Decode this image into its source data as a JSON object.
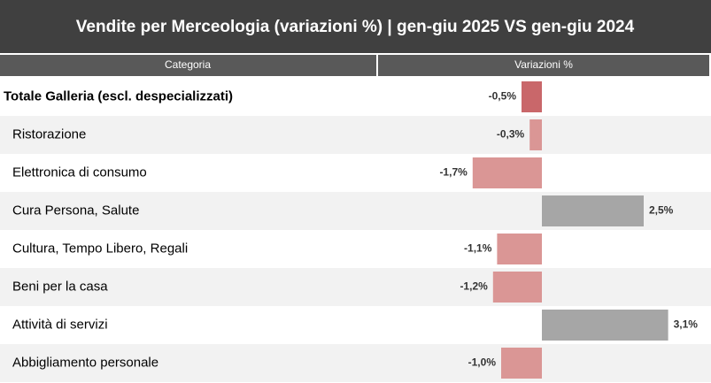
{
  "chart_data": {
    "type": "bar",
    "title": "Vendite per Merceologia (variazioni %) | gen-giu 2025 VS gen-giu 2024",
    "column_headers": [
      "Categoria",
      "Variazioni %"
    ],
    "categories": [
      "Totale Galleria (escl. despecializzati)",
      "Ristorazione",
      "Elettronica di consumo",
      "Cura Persona, Salute",
      "Cultura, Tempo Libero, Regali",
      "Beni per la casa",
      "Attività di servizi",
      "Abbigliamento personale"
    ],
    "values": [
      -0.5,
      -0.3,
      -1.7,
      2.5,
      -1.1,
      -1.2,
      3.1,
      -1.0
    ],
    "value_labels": [
      "-0,5%",
      "-0,3%",
      "-1,7%",
      "2,5%",
      "-1,1%",
      "-1,2%",
      "3,1%",
      "-1,0%"
    ],
    "colors": [
      "#c9676a",
      "#da9695",
      "#da9695",
      "#a6a6a6",
      "#da9695",
      "#da9695",
      "#a6a6a6",
      "#da9695"
    ]
  }
}
